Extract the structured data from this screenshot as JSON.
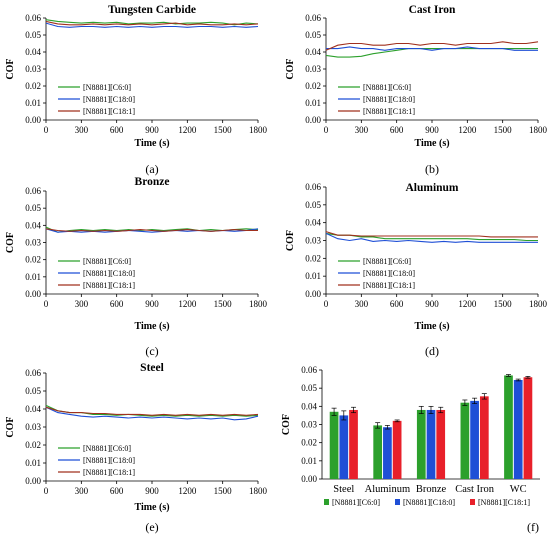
{
  "panel_labels": [
    "(a)",
    "(b)",
    "(c)",
    "(d)",
    "(e)",
    "(f)"
  ],
  "colors": {
    "C6_0": "#2ca02c",
    "C18_0": "#1f4fd6",
    "C18_1": "#a0301e",
    "C18_1_bar": "#e8202a"
  },
  "chart_data": [
    {
      "type": "line",
      "title": "Tungsten Carbide",
      "xlabel": "Time (s)",
      "ylabel": "COF",
      "xlim": [
        0,
        1800
      ],
      "ylim": [
        0,
        0.06
      ],
      "xticks": [
        0,
        300,
        600,
        900,
        1200,
        1500,
        1800
      ],
      "yticks": [
        0,
        0.01,
        0.02,
        0.03,
        0.04,
        0.05,
        0.06
      ],
      "legend_position": "bottom-left",
      "x": [
        0,
        100,
        200,
        300,
        400,
        500,
        600,
        700,
        800,
        900,
        1000,
        1100,
        1200,
        1300,
        1400,
        1500,
        1600,
        1700,
        1800
      ],
      "series": [
        {
          "name": "[N8881][C6:0]",
          "color": "#2ca02c",
          "values": [
            0.059,
            0.058,
            0.0575,
            0.057,
            0.0575,
            0.057,
            0.0575,
            0.0565,
            0.057,
            0.057,
            0.0575,
            0.0565,
            0.057,
            0.057,
            0.0575,
            0.057,
            0.056,
            0.057,
            0.0565
          ]
        },
        {
          "name": "[N8881][C18:0]",
          "color": "#1f4fd6",
          "values": [
            0.057,
            0.055,
            0.0545,
            0.055,
            0.055,
            0.0545,
            0.055,
            0.0545,
            0.055,
            0.0545,
            0.055,
            0.055,
            0.0545,
            0.055,
            0.055,
            0.0545,
            0.055,
            0.0545,
            0.055
          ]
        },
        {
          "name": "[N8881][C18:1]",
          "color": "#a0301e",
          "values": [
            0.058,
            0.0565,
            0.056,
            0.056,
            0.0565,
            0.056,
            0.0565,
            0.056,
            0.0565,
            0.056,
            0.0565,
            0.057,
            0.056,
            0.0565,
            0.056,
            0.056,
            0.0565,
            0.056,
            0.0565
          ]
        }
      ]
    },
    {
      "type": "line",
      "title": "Cast Iron",
      "xlabel": "Time (s)",
      "ylabel": "COF",
      "xlim": [
        0,
        1800
      ],
      "ylim": [
        0,
        0.06
      ],
      "xticks": [
        0,
        300,
        600,
        900,
        1200,
        1500,
        1800
      ],
      "yticks": [
        0,
        0.01,
        0.02,
        0.03,
        0.04,
        0.05,
        0.06
      ],
      "legend_position": "bottom-left",
      "x": [
        0,
        100,
        200,
        300,
        400,
        500,
        600,
        700,
        800,
        900,
        1000,
        1100,
        1200,
        1300,
        1400,
        1500,
        1600,
        1700,
        1800
      ],
      "series": [
        {
          "name": "[N8881][C6:0]",
          "color": "#2ca02c",
          "values": [
            0.038,
            0.037,
            0.037,
            0.0375,
            0.039,
            0.04,
            0.041,
            0.042,
            0.042,
            0.042,
            0.042,
            0.042,
            0.042,
            0.042,
            0.042,
            0.042,
            0.042,
            0.042,
            0.042
          ]
        },
        {
          "name": "[N8881][C18:0]",
          "color": "#1f4fd6",
          "values": [
            0.042,
            0.042,
            0.043,
            0.042,
            0.042,
            0.041,
            0.042,
            0.042,
            0.042,
            0.041,
            0.042,
            0.042,
            0.043,
            0.042,
            0.042,
            0.042,
            0.041,
            0.041,
            0.041
          ]
        },
        {
          "name": "[N8881][C18:1]",
          "color": "#a0301e",
          "values": [
            0.041,
            0.044,
            0.045,
            0.045,
            0.044,
            0.044,
            0.045,
            0.045,
            0.044,
            0.045,
            0.045,
            0.044,
            0.045,
            0.045,
            0.045,
            0.046,
            0.045,
            0.045,
            0.046
          ]
        }
      ]
    },
    {
      "type": "line",
      "title": "Bronze",
      "xlabel": "Time (s)",
      "ylabel": "COF",
      "xlim": [
        0,
        1800
      ],
      "ylim": [
        0,
        0.06
      ],
      "xticks": [
        0,
        300,
        600,
        900,
        1200,
        1500,
        1800
      ],
      "yticks": [
        0,
        0.01,
        0.02,
        0.03,
        0.04,
        0.05,
        0.06
      ],
      "legend_position": "bottom-left",
      "x": [
        0,
        100,
        200,
        300,
        400,
        500,
        600,
        700,
        800,
        900,
        1000,
        1100,
        1200,
        1300,
        1400,
        1500,
        1600,
        1700,
        1800
      ],
      "series": [
        {
          "name": "[N8881][C6:0]",
          "color": "#2ca02c",
          "values": [
            0.039,
            0.036,
            0.037,
            0.0375,
            0.037,
            0.0375,
            0.037,
            0.0375,
            0.037,
            0.0375,
            0.037,
            0.0375,
            0.038,
            0.037,
            0.0375,
            0.037,
            0.0375,
            0.038,
            0.0375
          ]
        },
        {
          "name": "[N8881][C18:0]",
          "color": "#1f4fd6",
          "values": [
            0.038,
            0.036,
            0.0365,
            0.036,
            0.0365,
            0.036,
            0.0365,
            0.037,
            0.0365,
            0.036,
            0.0365,
            0.037,
            0.0365,
            0.037,
            0.0365,
            0.037,
            0.0365,
            0.037,
            0.038
          ]
        },
        {
          "name": "[N8881][C18:1]",
          "color": "#a0301e",
          "values": [
            0.038,
            0.037,
            0.0365,
            0.037,
            0.0365,
            0.037,
            0.0365,
            0.037,
            0.0375,
            0.037,
            0.0365,
            0.037,
            0.0375,
            0.037,
            0.0365,
            0.037,
            0.0375,
            0.037,
            0.037
          ]
        }
      ]
    },
    {
      "type": "line",
      "title": "Aluminum",
      "xlabel": "Time (s)",
      "ylabel": "COF",
      "xlim": [
        0,
        1800
      ],
      "ylim": [
        0,
        0.06
      ],
      "xticks": [
        0,
        300,
        600,
        900,
        1200,
        1500,
        1800
      ],
      "yticks": [
        0,
        0.01,
        0.02,
        0.03,
        0.04,
        0.05,
        0.06
      ],
      "legend_position": "bottom-left",
      "x": [
        0,
        100,
        200,
        300,
        400,
        500,
        600,
        700,
        800,
        900,
        1000,
        1100,
        1200,
        1300,
        1400,
        1500,
        1600,
        1700,
        1800
      ],
      "series": [
        {
          "name": "[N8881][C6:0]",
          "color": "#2ca02c",
          "values": [
            0.034,
            0.033,
            0.033,
            0.032,
            0.032,
            0.031,
            0.031,
            0.031,
            0.031,
            0.031,
            0.031,
            0.031,
            0.031,
            0.0305,
            0.0305,
            0.0305,
            0.0305,
            0.03,
            0.03
          ]
        },
        {
          "name": "[N8881][C18:0]",
          "color": "#1f4fd6",
          "values": [
            0.034,
            0.031,
            0.03,
            0.031,
            0.0295,
            0.03,
            0.0295,
            0.03,
            0.0295,
            0.029,
            0.0295,
            0.029,
            0.0295,
            0.029,
            0.029,
            0.029,
            0.029,
            0.029,
            0.029
          ]
        },
        {
          "name": "[N8881][C18:1]",
          "color": "#a0301e",
          "values": [
            0.035,
            0.033,
            0.033,
            0.0325,
            0.0325,
            0.0325,
            0.0325,
            0.0325,
            0.0325,
            0.0325,
            0.0325,
            0.0325,
            0.0325,
            0.0325,
            0.032,
            0.032,
            0.032,
            0.032,
            0.032
          ]
        }
      ]
    },
    {
      "type": "line",
      "title": "Steel",
      "xlabel": "Time (s)",
      "ylabel": "COF",
      "xlim": [
        0,
        1800
      ],
      "ylim": [
        0,
        0.06
      ],
      "xticks": [
        0,
        300,
        600,
        900,
        1200,
        1500,
        1800
      ],
      "yticks": [
        0,
        0.01,
        0.02,
        0.03,
        0.04,
        0.05,
        0.06
      ],
      "legend_position": "bottom-left",
      "x": [
        0,
        100,
        200,
        300,
        400,
        500,
        600,
        700,
        800,
        900,
        1000,
        1100,
        1200,
        1300,
        1400,
        1500,
        1600,
        1700,
        1800
      ],
      "series": [
        {
          "name": "[N8881][C6:0]",
          "color": "#2ca02c",
          "values": [
            0.042,
            0.039,
            0.038,
            0.038,
            0.037,
            0.037,
            0.0365,
            0.037,
            0.0365,
            0.036,
            0.0365,
            0.036,
            0.0365,
            0.036,
            0.0365,
            0.036,
            0.0365,
            0.036,
            0.0365
          ]
        },
        {
          "name": "[N8881][C18:0]",
          "color": "#1f4fd6",
          "values": [
            0.041,
            0.038,
            0.037,
            0.036,
            0.0355,
            0.036,
            0.0355,
            0.035,
            0.0355,
            0.035,
            0.0355,
            0.035,
            0.0345,
            0.035,
            0.0345,
            0.035,
            0.034,
            0.0345,
            0.036
          ]
        },
        {
          "name": "[N8881][C18:1]",
          "color": "#a0301e",
          "values": [
            0.041,
            0.039,
            0.038,
            0.038,
            0.0375,
            0.0375,
            0.037,
            0.037,
            0.037,
            0.0365,
            0.037,
            0.0365,
            0.037,
            0.0365,
            0.037,
            0.0365,
            0.037,
            0.0365,
            0.037
          ]
        }
      ]
    },
    {
      "type": "bar",
      "title": "",
      "xlabel": "",
      "ylabel": "COF",
      "ylim": [
        0,
        0.06
      ],
      "yticks": [
        0,
        0.01,
        0.02,
        0.03,
        0.04,
        0.05,
        0.06
      ],
      "categories": [
        "Steel",
        "Aluminum",
        "Bronze",
        "Cast Iron",
        "WC"
      ],
      "legend_position": "bottom",
      "series": [
        {
          "name": "[N8881][C6:0]",
          "color": "#2ca02c",
          "values": [
            0.037,
            0.0295,
            0.038,
            0.042,
            0.057
          ],
          "errors": [
            0.002,
            0.0015,
            0.002,
            0.0015,
            0.0005
          ]
        },
        {
          "name": "[N8881][C18:0]",
          "color": "#1f4fd6",
          "values": [
            0.035,
            0.0285,
            0.038,
            0.043,
            0.0545
          ],
          "errors": [
            0.0025,
            0.001,
            0.002,
            0.0015,
            0.0005
          ]
        },
        {
          "name": "[N8881][C18:1]",
          "color": "#e8202a",
          "values": [
            0.038,
            0.032,
            0.038,
            0.0455,
            0.056
          ],
          "errors": [
            0.0015,
            0.0005,
            0.0015,
            0.0015,
            0.0005
          ]
        }
      ]
    }
  ]
}
